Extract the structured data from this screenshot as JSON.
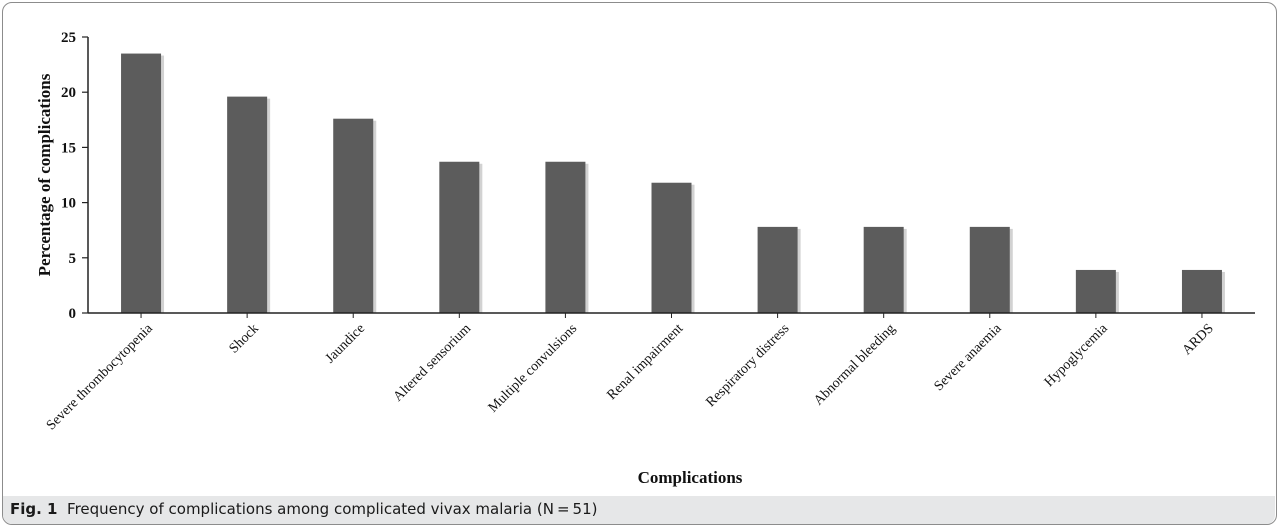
{
  "figure": {
    "caption_label": "Fig. 1",
    "caption_text": "Frequency of complications among complicated vivax malaria (N = 51)"
  },
  "chart_data": {
    "type": "bar",
    "title": "",
    "xlabel": "Complications",
    "ylabel": "Percentage of complications",
    "ylim": [
      0,
      25
    ],
    "yticks": [
      0,
      5,
      10,
      15,
      20,
      25
    ],
    "grid": false,
    "categories": [
      "Severe thrombocytopenia",
      "Shock",
      "Jaundice",
      "Altered sensorium",
      "Multiple convulsions",
      "Renal impairment",
      "Respiratory distress",
      "Abnormal bleeding",
      "Severe anaemia",
      "Hypoglycemia",
      "ARDS"
    ],
    "values": [
      23.5,
      19.6,
      17.6,
      13.7,
      13.7,
      11.8,
      7.8,
      7.8,
      7.8,
      3.9,
      3.9
    ],
    "colors": {
      "bar": "#5c5c5c",
      "bar_shadow": "#d2d2d2",
      "axis": "#222222"
    }
  }
}
